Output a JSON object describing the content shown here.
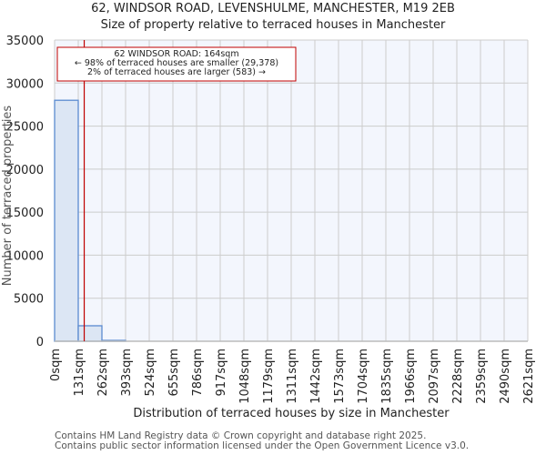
{
  "header": {
    "title": "62, WINDSOR ROAD, LEVENSHULME, MANCHESTER, M19 2EB",
    "subtitle": "Size of property relative to terraced houses in Manchester"
  },
  "annotation": {
    "line1": "62 WINDSOR ROAD: 164sqm",
    "line2": "← 98% of terraced houses are smaller (29,378)",
    "line3": "2% of terraced houses are larger (583) →",
    "marker_value": 164
  },
  "footer": {
    "line1": "Contains HM Land Registry data © Crown copyright and database right 2025.",
    "line2": "Contains public sector information licensed under the Open Government Licence v3.0."
  },
  "colors": {
    "bar_fill": "#dce6f4",
    "bar_edge": "#5b8bd0",
    "marker": "#c00000",
    "plot_bg": "#f3f6fd",
    "grid": "#cccccc"
  },
  "chart_data": {
    "type": "bar",
    "title": "62, WINDSOR ROAD, LEVENSHULME, MANCHESTER, M19 2EB",
    "subtitle": "Size of property relative to terraced houses in Manchester",
    "xlabel": "Distribution of terraced houses by size in Manchester",
    "ylabel": "Number of terraced properties",
    "categories": [
      "0sqm",
      "131sqm",
      "262sqm",
      "393sqm",
      "524sqm",
      "655sqm",
      "786sqm",
      "917sqm",
      "1048sqm",
      "1179sqm",
      "1311sqm",
      "1442sqm",
      "1573sqm",
      "1704sqm",
      "1835sqm",
      "1966sqm",
      "2097sqm",
      "2228sqm",
      "2359sqm",
      "2490sqm",
      "2621sqm"
    ],
    "values": [
      28000,
      1800,
      100,
      0,
      0,
      0,
      0,
      0,
      0,
      0,
      0,
      0,
      0,
      0,
      0,
      0,
      0,
      0,
      0,
      0
    ],
    "yticks": [
      0,
      5000,
      10000,
      15000,
      20000,
      25000,
      30000,
      35000
    ],
    "ylim": [
      0,
      35000
    ],
    "grid": true,
    "marker_line": 164
  }
}
